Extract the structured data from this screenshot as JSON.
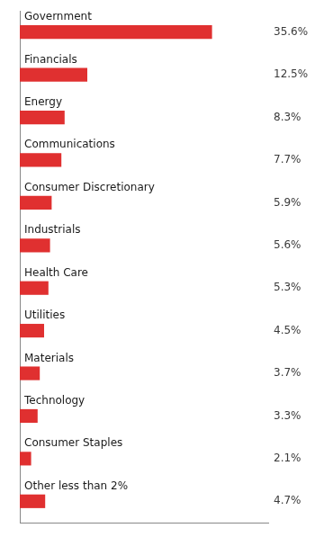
{
  "chart_data": {
    "type": "bar",
    "orientation": "horizontal",
    "categories": [
      "Government",
      "Financials",
      "Energy",
      "Communications",
      "Consumer Discretionary",
      "Industrials",
      "Health Care",
      "Utilities",
      "Materials",
      "Technology",
      "Consumer Staples",
      "Other less than 2%"
    ],
    "values": [
      35.6,
      12.5,
      8.3,
      7.7,
      5.9,
      5.6,
      5.3,
      4.5,
      3.7,
      3.3,
      2.1,
      4.7
    ],
    "value_labels": [
      "35.6%",
      "12.5%",
      "8.3%",
      "7.7%",
      "5.9%",
      "5.6%",
      "5.3%",
      "4.5%",
      "3.7%",
      "3.3%",
      "2.1%",
      "4.7%"
    ],
    "data_labels": true,
    "color": "#e03030",
    "xlim": [
      0,
      46
    ],
    "tick_labels": false,
    "grid": false
  }
}
